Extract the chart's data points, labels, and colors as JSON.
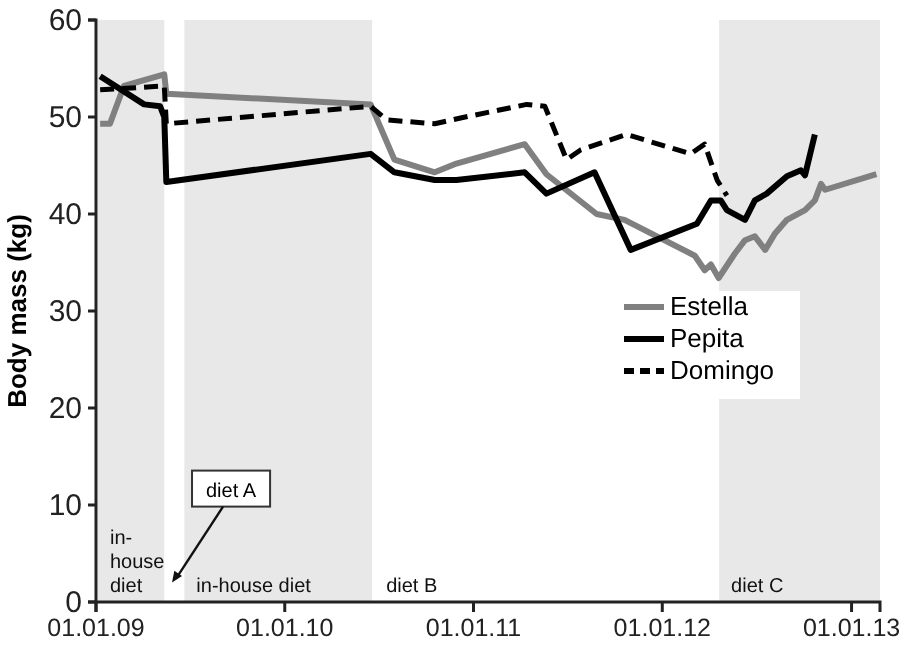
{
  "chart_data": {
    "type": "line",
    "ylabel": "Body mass (kg)",
    "xlim": [
      "2009-01-01",
      "2013-02-25"
    ],
    "ylim": [
      0,
      60
    ],
    "yticks": [
      0,
      10,
      20,
      30,
      40,
      50,
      60
    ],
    "xticks": [
      {
        "value": "2009-01-01",
        "label": "01.01.09"
      },
      {
        "value": "2010-01-01",
        "label": "01.01.10"
      },
      {
        "value": "2011-01-01",
        "label": "01.01.11"
      },
      {
        "value": "2012-01-01",
        "label": "01.01.12"
      },
      {
        "value": "2013-01-01",
        "label": "01.01.13"
      }
    ],
    "grid": false,
    "legend": "right",
    "marker": "none",
    "bands": [
      {
        "axis": "x",
        "from": "2009-01-01",
        "to": "2009-05-13",
        "label": "in-house diet",
        "color": "#e8e8e8"
      },
      {
        "axis": "x",
        "from": "2009-06-17",
        "to": "2010-06-19",
        "label": "in-house diet",
        "color": "#e8e8e8"
      },
      {
        "axis": "x",
        "from": "2012-04-16",
        "to": "2013-02-25",
        "label": "diet C",
        "color": "#e8e8e8"
      }
    ],
    "annotations": [
      {
        "text": "diet A",
        "x": "2009-05-28",
        "y": 2
      },
      "diet B"
    ],
    "series": [
      {
        "name": "Estella",
        "color": "#808080",
        "line_style": "solid",
        "x": [
          "2009-01-09",
          "2009-01-28",
          "2009-02-24",
          "2009-05-13",
          "2009-05-17",
          "2010-06-16",
          "2010-08-01",
          "2010-10-18",
          "2010-11-29",
          "2011-04-10",
          "2011-05-22",
          "2011-08-27",
          "2011-10-20",
          "2012-03-04",
          "2012-03-23",
          "2012-04-04",
          "2012-04-19",
          "2012-05-20",
          "2012-06-09",
          "2012-06-28",
          "2012-07-18",
          "2012-08-06",
          "2012-08-29",
          "2012-10-03",
          "2012-10-22",
          "2012-11-03",
          "2012-11-11",
          "2013-02-18"
        ],
        "values": [
          49.3,
          49.3,
          53.2,
          54.4,
          52.4,
          51.3,
          45.6,
          44.3,
          45.2,
          47.2,
          44.1,
          40,
          39.4,
          35.7,
          34.2,
          34.8,
          33.4,
          35.9,
          37.3,
          37.7,
          36.3,
          38,
          39.4,
          40.4,
          41.4,
          43.1,
          42.5,
          44.1
        ]
      },
      {
        "name": "Pepita",
        "color": "#000000",
        "line_style": "solid",
        "x": [
          "2009-01-09",
          "2009-04-04",
          "2009-05-05",
          "2009-05-13",
          "2009-05-17",
          "2010-06-16",
          "2010-08-01",
          "2010-10-18",
          "2010-11-29",
          "2011-04-10",
          "2011-05-22",
          "2011-08-23",
          "2011-11-01",
          "2012-03-08",
          "2012-04-04",
          "2012-04-23",
          "2012-05-05",
          "2012-06-09",
          "2012-06-28",
          "2012-07-21",
          "2012-08-29",
          "2012-09-25",
          "2012-10-03",
          "2012-10-22"
        ],
        "values": [
          54.2,
          51.3,
          51.1,
          50,
          43.3,
          46.2,
          44.3,
          43.5,
          43.5,
          44.3,
          42.1,
          44.3,
          36.3,
          39,
          41.4,
          41.4,
          40.4,
          39.4,
          41.4,
          42.1,
          43.9,
          44.5,
          44,
          48.2
        ]
      },
      {
        "name": "Domingo",
        "color": "#000000",
        "line_style": "dashed",
        "x": [
          "2009-01-09",
          "2009-05-13",
          "2009-05-17",
          "2010-06-16",
          "2010-07-17",
          "2010-10-18",
          "2010-12-07",
          "2011-04-14",
          "2011-05-19",
          "2011-06-30",
          "2011-07-27",
          "2011-10-24",
          "2012-02-25",
          "2012-03-23",
          "2012-04-16",
          "2012-05-05"
        ],
        "values": [
          52.8,
          53.2,
          49.3,
          51.1,
          49.7,
          49.3,
          49.9,
          51.3,
          51.1,
          45.6,
          46.6,
          48.2,
          46.2,
          47.2,
          43.5,
          41.9
        ]
      }
    ]
  }
}
